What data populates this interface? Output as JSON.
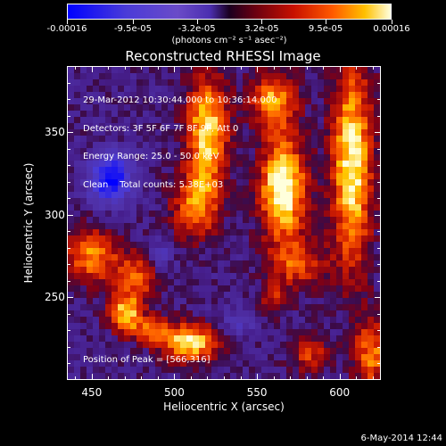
{
  "chart_data": {
    "type": "heatmap",
    "title": "Reconstructed RHESSI Image",
    "xlabel": "Heliocentric X (arcsec)",
    "ylabel": "Heliocentric Y (arcsec)",
    "xlim": [
      435,
      625
    ],
    "ylim": [
      200,
      390
    ],
    "xticks": [
      450,
      500,
      550,
      600
    ],
    "yticks": [
      250,
      300,
      350
    ],
    "colorbar": {
      "ticks": [
        "-0.00016",
        "-9.5e-05",
        "-3.2e-05",
        "3.2e-05",
        "9.5e-05",
        "0.00016"
      ],
      "units": "(photons cm⁻² s⁻¹ asec⁻²)",
      "range": [
        -0.00016,
        0.00016
      ]
    },
    "annotations": [
      "29-Mar-2012 10:30:44.000 to 10:36:14.000",
      "Detectors: 3F 5F 6F 7F 8F 9F, Att 0",
      "Energy Range: 25.0 - 50.0 keV",
      "Clean    Total counts: 5.38E+03"
    ],
    "peak_text": "Position of Peak = [566,316]",
    "peak": [
      566,
      316
    ],
    "sources": [
      {
        "x": 520,
        "y": 350,
        "sx": 9,
        "sy": 25,
        "amp": 1.0
      },
      {
        "x": 512,
        "y": 305,
        "sx": 10,
        "sy": 14,
        "amp": 0.7
      },
      {
        "x": 566,
        "y": 316,
        "sx": 10,
        "sy": 22,
        "amp": 1.2
      },
      {
        "x": 560,
        "y": 370,
        "sx": 10,
        "sy": 12,
        "amp": 0.8
      },
      {
        "x": 608,
        "y": 330,
        "sx": 9,
        "sy": 45,
        "amp": 1.05
      },
      {
        "x": 575,
        "y": 270,
        "sx": 12,
        "sy": 10,
        "amp": 0.6
      },
      {
        "x": 450,
        "y": 275,
        "sx": 12,
        "sy": 12,
        "amp": 0.75
      },
      {
        "x": 478,
        "y": 262,
        "sx": 9,
        "sy": 10,
        "amp": 0.65
      },
      {
        "x": 470,
        "y": 240,
        "sx": 7,
        "sy": 8,
        "amp": 0.9
      },
      {
        "x": 510,
        "y": 222,
        "sx": 12,
        "sy": 8,
        "amp": 1.0
      },
      {
        "x": 487,
        "y": 230,
        "sx": 9,
        "sy": 6,
        "amp": 0.6
      },
      {
        "x": 582,
        "y": 215,
        "sx": 8,
        "sy": 8,
        "amp": 0.55
      },
      {
        "x": 620,
        "y": 215,
        "sx": 8,
        "sy": 15,
        "amp": 0.7
      },
      {
        "x": 560,
        "y": 248,
        "sx": 7,
        "sy": 7,
        "amp": 0.45
      }
    ],
    "negatives": [
      {
        "x": 461,
        "y": 322,
        "sx": 9,
        "sy": 10,
        "amp": 1.0
      },
      {
        "x": 490,
        "y": 275,
        "sx": 6,
        "sy": 6,
        "amp": 0.4
      },
      {
        "x": 540,
        "y": 235,
        "sx": 8,
        "sy": 6,
        "amp": 0.35
      }
    ]
  },
  "timestamp": "6-May-2014 12:44"
}
